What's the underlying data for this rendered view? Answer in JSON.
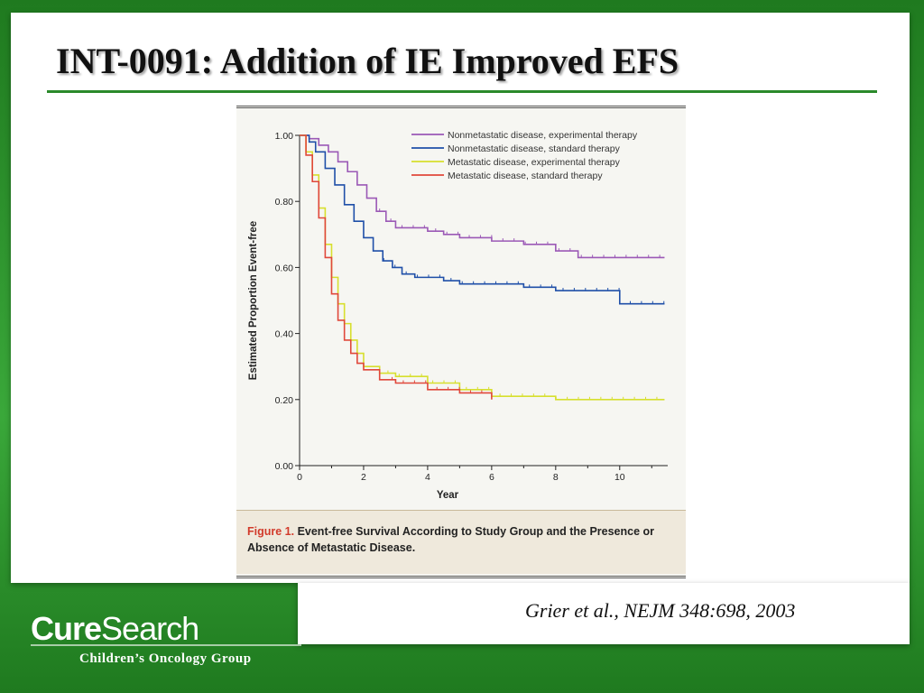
{
  "slide": {
    "title": "INT-0091: Addition of IE Improved EFS",
    "citation_author": "Grier et al.",
    "citation_rest": ", NEJM 348:698, 2003",
    "logo_bold": "Cure",
    "logo_regular": "Search",
    "logo_subtitle": "Children’s Oncology Group",
    "accent_color": "#2b8a2b"
  },
  "caption": {
    "label": "Figure 1.",
    "text": " Event-free Survival According to Study Group and the Presence or Absence of Metastatic Disease."
  },
  "chart_data": {
    "type": "line",
    "xlabel": "Year",
    "ylabel": "Estimated Proportion Event-free",
    "xlim": [
      0,
      11.5
    ],
    "ylim": [
      0,
      1
    ],
    "x_ticks": [
      0,
      2,
      4,
      6,
      8,
      10
    ],
    "y_ticks": [
      "0.00",
      "0.20",
      "0.40",
      "0.60",
      "0.80",
      "1.00"
    ],
    "legend_position": "top-right",
    "grid": false,
    "series": [
      {
        "name": "Nonmetastatic disease, experimental therapy",
        "color": "#9b59b6",
        "x": [
          0,
          0.3,
          0.6,
          0.9,
          1.2,
          1.5,
          1.8,
          2.1,
          2.4,
          2.7,
          3.0,
          3.5,
          4.0,
          4.5,
          5.0,
          6.0,
          7.0,
          8.0,
          8.7,
          10.0,
          11.4
        ],
        "y": [
          1.0,
          0.99,
          0.97,
          0.95,
          0.92,
          0.89,
          0.85,
          0.81,
          0.77,
          0.74,
          0.72,
          0.72,
          0.71,
          0.7,
          0.69,
          0.68,
          0.67,
          0.65,
          0.63,
          0.63,
          0.63
        ]
      },
      {
        "name": "Nonmetastatic disease, standard therapy",
        "color": "#1f4fa8",
        "x": [
          0,
          0.3,
          0.5,
          0.8,
          1.1,
          1.4,
          1.7,
          2.0,
          2.3,
          2.6,
          2.9,
          3.2,
          3.6,
          4.0,
          4.5,
          5.0,
          6.0,
          7.0,
          8.0,
          9.8,
          10.0,
          11.4
        ],
        "y": [
          1.0,
          0.98,
          0.95,
          0.9,
          0.85,
          0.79,
          0.74,
          0.69,
          0.65,
          0.62,
          0.6,
          0.58,
          0.57,
          0.57,
          0.56,
          0.55,
          0.55,
          0.54,
          0.53,
          0.53,
          0.49,
          0.49
        ]
      },
      {
        "name": "Metastatic disease, experimental therapy",
        "color": "#d7df2e",
        "x": [
          0,
          0.2,
          0.4,
          0.6,
          0.8,
          1.0,
          1.2,
          1.4,
          1.6,
          1.8,
          2.0,
          2.5,
          3.0,
          4.0,
          5.0,
          6.0,
          8.0,
          10.0,
          11.4
        ],
        "y": [
          1.0,
          0.95,
          0.88,
          0.78,
          0.67,
          0.57,
          0.49,
          0.43,
          0.38,
          0.34,
          0.3,
          0.28,
          0.27,
          0.25,
          0.23,
          0.21,
          0.2,
          0.2,
          0.2
        ]
      },
      {
        "name": "Metastatic disease, standard therapy",
        "color": "#e0483b",
        "x": [
          0,
          0.2,
          0.4,
          0.6,
          0.8,
          1.0,
          1.2,
          1.4,
          1.6,
          1.8,
          2.0,
          2.5,
          3.0,
          4.0,
          5.0,
          5.9,
          6.0
        ],
        "y": [
          1.0,
          0.94,
          0.86,
          0.75,
          0.63,
          0.52,
          0.44,
          0.38,
          0.34,
          0.31,
          0.29,
          0.26,
          0.25,
          0.23,
          0.22,
          0.22,
          0.2
        ]
      }
    ]
  }
}
